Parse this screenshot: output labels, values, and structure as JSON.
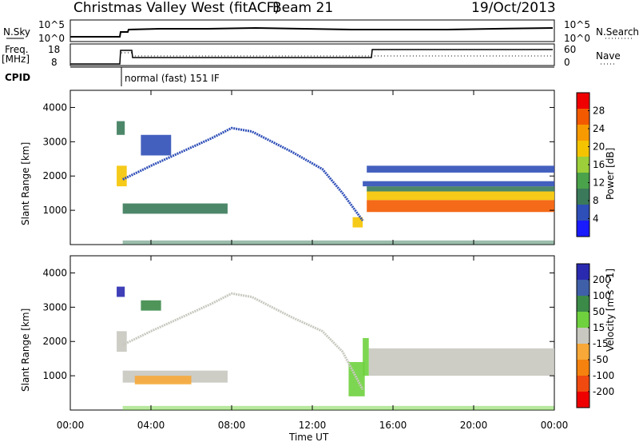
{
  "header": {
    "title": "Christmas Valley West (fitACF)",
    "beam": "Beam 21",
    "date": "19/Oct/2013"
  },
  "panels": {
    "nsky": {
      "label": "N.Sky",
      "ticks": [
        "10^5",
        "10^0"
      ],
      "right_ticks": [
        "10^5",
        "10^0"
      ],
      "right_label": "N.Search"
    },
    "freq": {
      "label_line1": "Freq.",
      "label_line2": "[MHz]",
      "ticks": [
        "18",
        "8"
      ],
      "right_ticks": [
        "60",
        "0"
      ],
      "right_label": "Nave"
    },
    "cpid": {
      "label": "CPID",
      "text": "normal (fast) 151 IF"
    }
  },
  "colors": {
    "power_scale": [
      "#1a1aff",
      "#2f4fb8",
      "#3a7a5a",
      "#4aa24a",
      "#9ccf3a",
      "#f5c400",
      "#f79a00",
      "#f35a00",
      "#f00000"
    ],
    "velocity_scale": [
      "#2a2ab0",
      "#3f5fa8",
      "#3c8a48",
      "#6fd13e",
      "#c8c8c0",
      "#f7a838",
      "#f5820e",
      "#f04a10",
      "#ee0000"
    ]
  },
  "chart_data": [
    {
      "type": "heatmap",
      "name": "power",
      "ylabel": "Slant Range [km]",
      "yticks": [
        "4000",
        "3000",
        "2000",
        "1000"
      ],
      "ylim": [
        0,
        4500
      ],
      "colorbar_label": "Power [dB]",
      "colorbar_ticks": [
        "28",
        "24",
        "20",
        "16",
        "12",
        "8",
        "4"
      ],
      "colorbar_range": [
        0,
        32
      ],
      "segments": [
        {
          "t0": 2.6,
          "t1": 7.8,
          "r0": 900,
          "r1": 1200,
          "level": 8
        },
        {
          "t0": 2.3,
          "t1": 2.7,
          "r0": 3200,
          "r1": 3600,
          "level": 10
        },
        {
          "t0": 2.3,
          "t1": 2.8,
          "r0": 1700,
          "r1": 2300,
          "level": 18
        },
        {
          "t0": 3.5,
          "t1": 5.0,
          "r0": 2600,
          "r1": 3200,
          "level": 6
        },
        {
          "t0": 14.0,
          "t1": 14.5,
          "r0": 500,
          "r1": 800,
          "level": 18
        },
        {
          "t0": 14.7,
          "t1": 24.0,
          "r0": 950,
          "r1": 1300,
          "level": 28
        },
        {
          "t0": 14.7,
          "t1": 24.0,
          "r0": 1300,
          "r1": 1550,
          "level": 18
        },
        {
          "t0": 14.7,
          "t1": 24.0,
          "r0": 1550,
          "r1": 1700,
          "level": 10
        },
        {
          "t0": 14.7,
          "t1": 24.0,
          "r0": 2100,
          "r1": 2300,
          "level": 5
        },
        {
          "t0": 14.5,
          "t1": 24.0,
          "r0": 1700,
          "r1": 1850,
          "level": 6
        }
      ],
      "traces": [
        {
          "points": [
            [
              2.6,
              1900
            ],
            [
              4.0,
              2300
            ],
            [
              5.5,
              2700
            ],
            [
              7.0,
              3100
            ],
            [
              8.0,
              3400
            ],
            [
              9.0,
              3300
            ],
            [
              11.0,
              2700
            ],
            [
              12.5,
              2200
            ],
            [
              13.5,
              1500
            ],
            [
              14.5,
              700
            ]
          ],
          "level": 6
        }
      ]
    },
    {
      "type": "heatmap",
      "name": "velocity",
      "ylabel": "Slant Range [km]",
      "yticks": [
        "4000",
        "3000",
        "2000",
        "1000"
      ],
      "ylim": [
        0,
        4500
      ],
      "colorbar_label": "Velocity [m s^-1]",
      "colorbar_ticks": [
        "200",
        "100",
        "50",
        "15",
        "-15",
        "-50",
        "-100",
        "-200"
      ],
      "colorbar_range": [
        -250,
        250
      ],
      "segments": [
        {
          "t0": 2.6,
          "t1": 7.8,
          "r0": 800,
          "r1": 1150,
          "level": 0
        },
        {
          "t0": 3.2,
          "t1": 6.0,
          "r0": 750,
          "r1": 1000,
          "level": -40
        },
        {
          "t0": 2.3,
          "t1": 2.7,
          "r0": 3300,
          "r1": 3600,
          "level": 200
        },
        {
          "t0": 2.3,
          "t1": 2.8,
          "r0": 1700,
          "r1": 2300,
          "level": 0
        },
        {
          "t0": 3.5,
          "t1": 4.5,
          "r0": 2900,
          "r1": 3200,
          "level": 120
        },
        {
          "t0": 14.8,
          "t1": 24.0,
          "r0": 1000,
          "r1": 1800,
          "level": 0
        },
        {
          "t0": 14.5,
          "t1": 14.8,
          "r0": 1000,
          "r1": 2100,
          "level": 30
        },
        {
          "t0": 13.8,
          "t1": 14.6,
          "r0": 400,
          "r1": 1400,
          "level": 30
        }
      ],
      "traces": [
        {
          "points": [
            [
              2.6,
              1900
            ],
            [
              4.0,
              2300
            ],
            [
              5.5,
              2700
            ],
            [
              7.0,
              3100
            ],
            [
              8.0,
              3400
            ],
            [
              9.0,
              3300
            ],
            [
              11.0,
              2700
            ],
            [
              12.5,
              2300
            ],
            [
              13.5,
              1700
            ],
            [
              14.5,
              600
            ]
          ],
          "level": 0
        }
      ]
    }
  ],
  "xaxis": {
    "label": "Time UT",
    "ticks": [
      "00:00",
      "04:00",
      "08:00",
      "12:00",
      "16:00",
      "20:00",
      "00:00"
    ],
    "range_hours": [
      0,
      24
    ]
  }
}
